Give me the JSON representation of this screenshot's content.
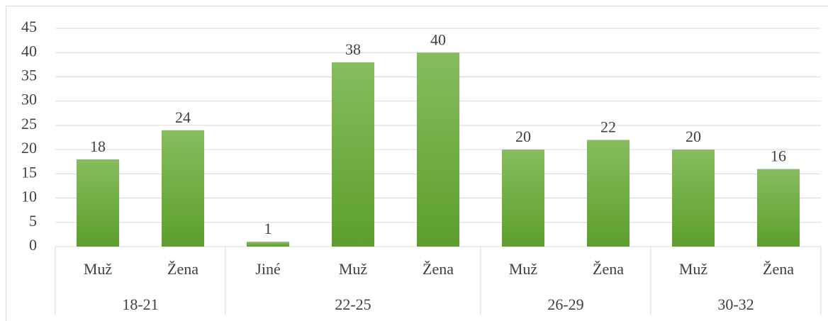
{
  "chart_data": {
    "type": "bar",
    "groups": [
      {
        "name": "18-21",
        "categories": [
          "Muž",
          "Žena"
        ]
      },
      {
        "name": "22-25",
        "categories": [
          "Jiné",
          "Muž",
          "Žena"
        ]
      },
      {
        "name": "26-29",
        "categories": [
          "Muž",
          "Žena"
        ]
      },
      {
        "name": "30-32",
        "categories": [
          "Muž",
          "Žena"
        ]
      }
    ],
    "values": [
      18,
      24,
      1,
      38,
      40,
      20,
      22,
      20,
      16
    ],
    "color": "#70ad47",
    "ylim": [
      0,
      45
    ],
    "yticks": [
      0,
      5,
      10,
      15,
      20,
      25,
      30,
      35,
      40,
      45
    ],
    "grid": true
  }
}
